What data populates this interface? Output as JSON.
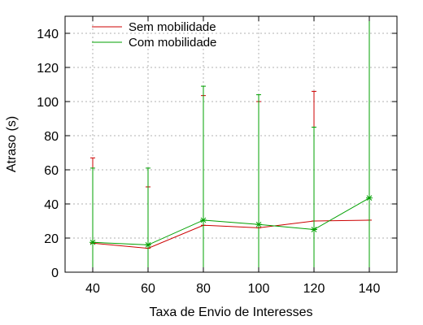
{
  "chart_data": {
    "type": "line",
    "title": "",
    "xlabel": "Taxa de Envio de Interesses",
    "ylabel": "Atraso (s)",
    "x": [
      40,
      60,
      80,
      100,
      120,
      140
    ],
    "xlim": [
      30,
      150
    ],
    "ylim": [
      0,
      150
    ],
    "xticks": [
      40,
      60,
      80,
      100,
      120,
      140
    ],
    "yticks": [
      0,
      20,
      40,
      60,
      80,
      100,
      120,
      140
    ],
    "grid": true,
    "legend_position": "top-left",
    "series": [
      {
        "name": "Sem mobilidade",
        "color": "#cc0000",
        "marker": "tick",
        "values": [
          17,
          14,
          27.5,
          26,
          30,
          30.5
        ],
        "err_low": [
          0,
          0,
          0,
          0,
          0,
          0
        ],
        "err_high": [
          67,
          50,
          103.5,
          100,
          106,
          150
        ]
      },
      {
        "name": "Com mobilidade",
        "color": "#00a000",
        "marker": "star",
        "values": [
          17.5,
          16,
          30.5,
          28,
          25,
          43.5
        ],
        "err_low": [
          0,
          0,
          0,
          0,
          0,
          0
        ],
        "err_high": [
          61,
          61,
          109,
          104,
          85,
          150
        ]
      }
    ]
  }
}
